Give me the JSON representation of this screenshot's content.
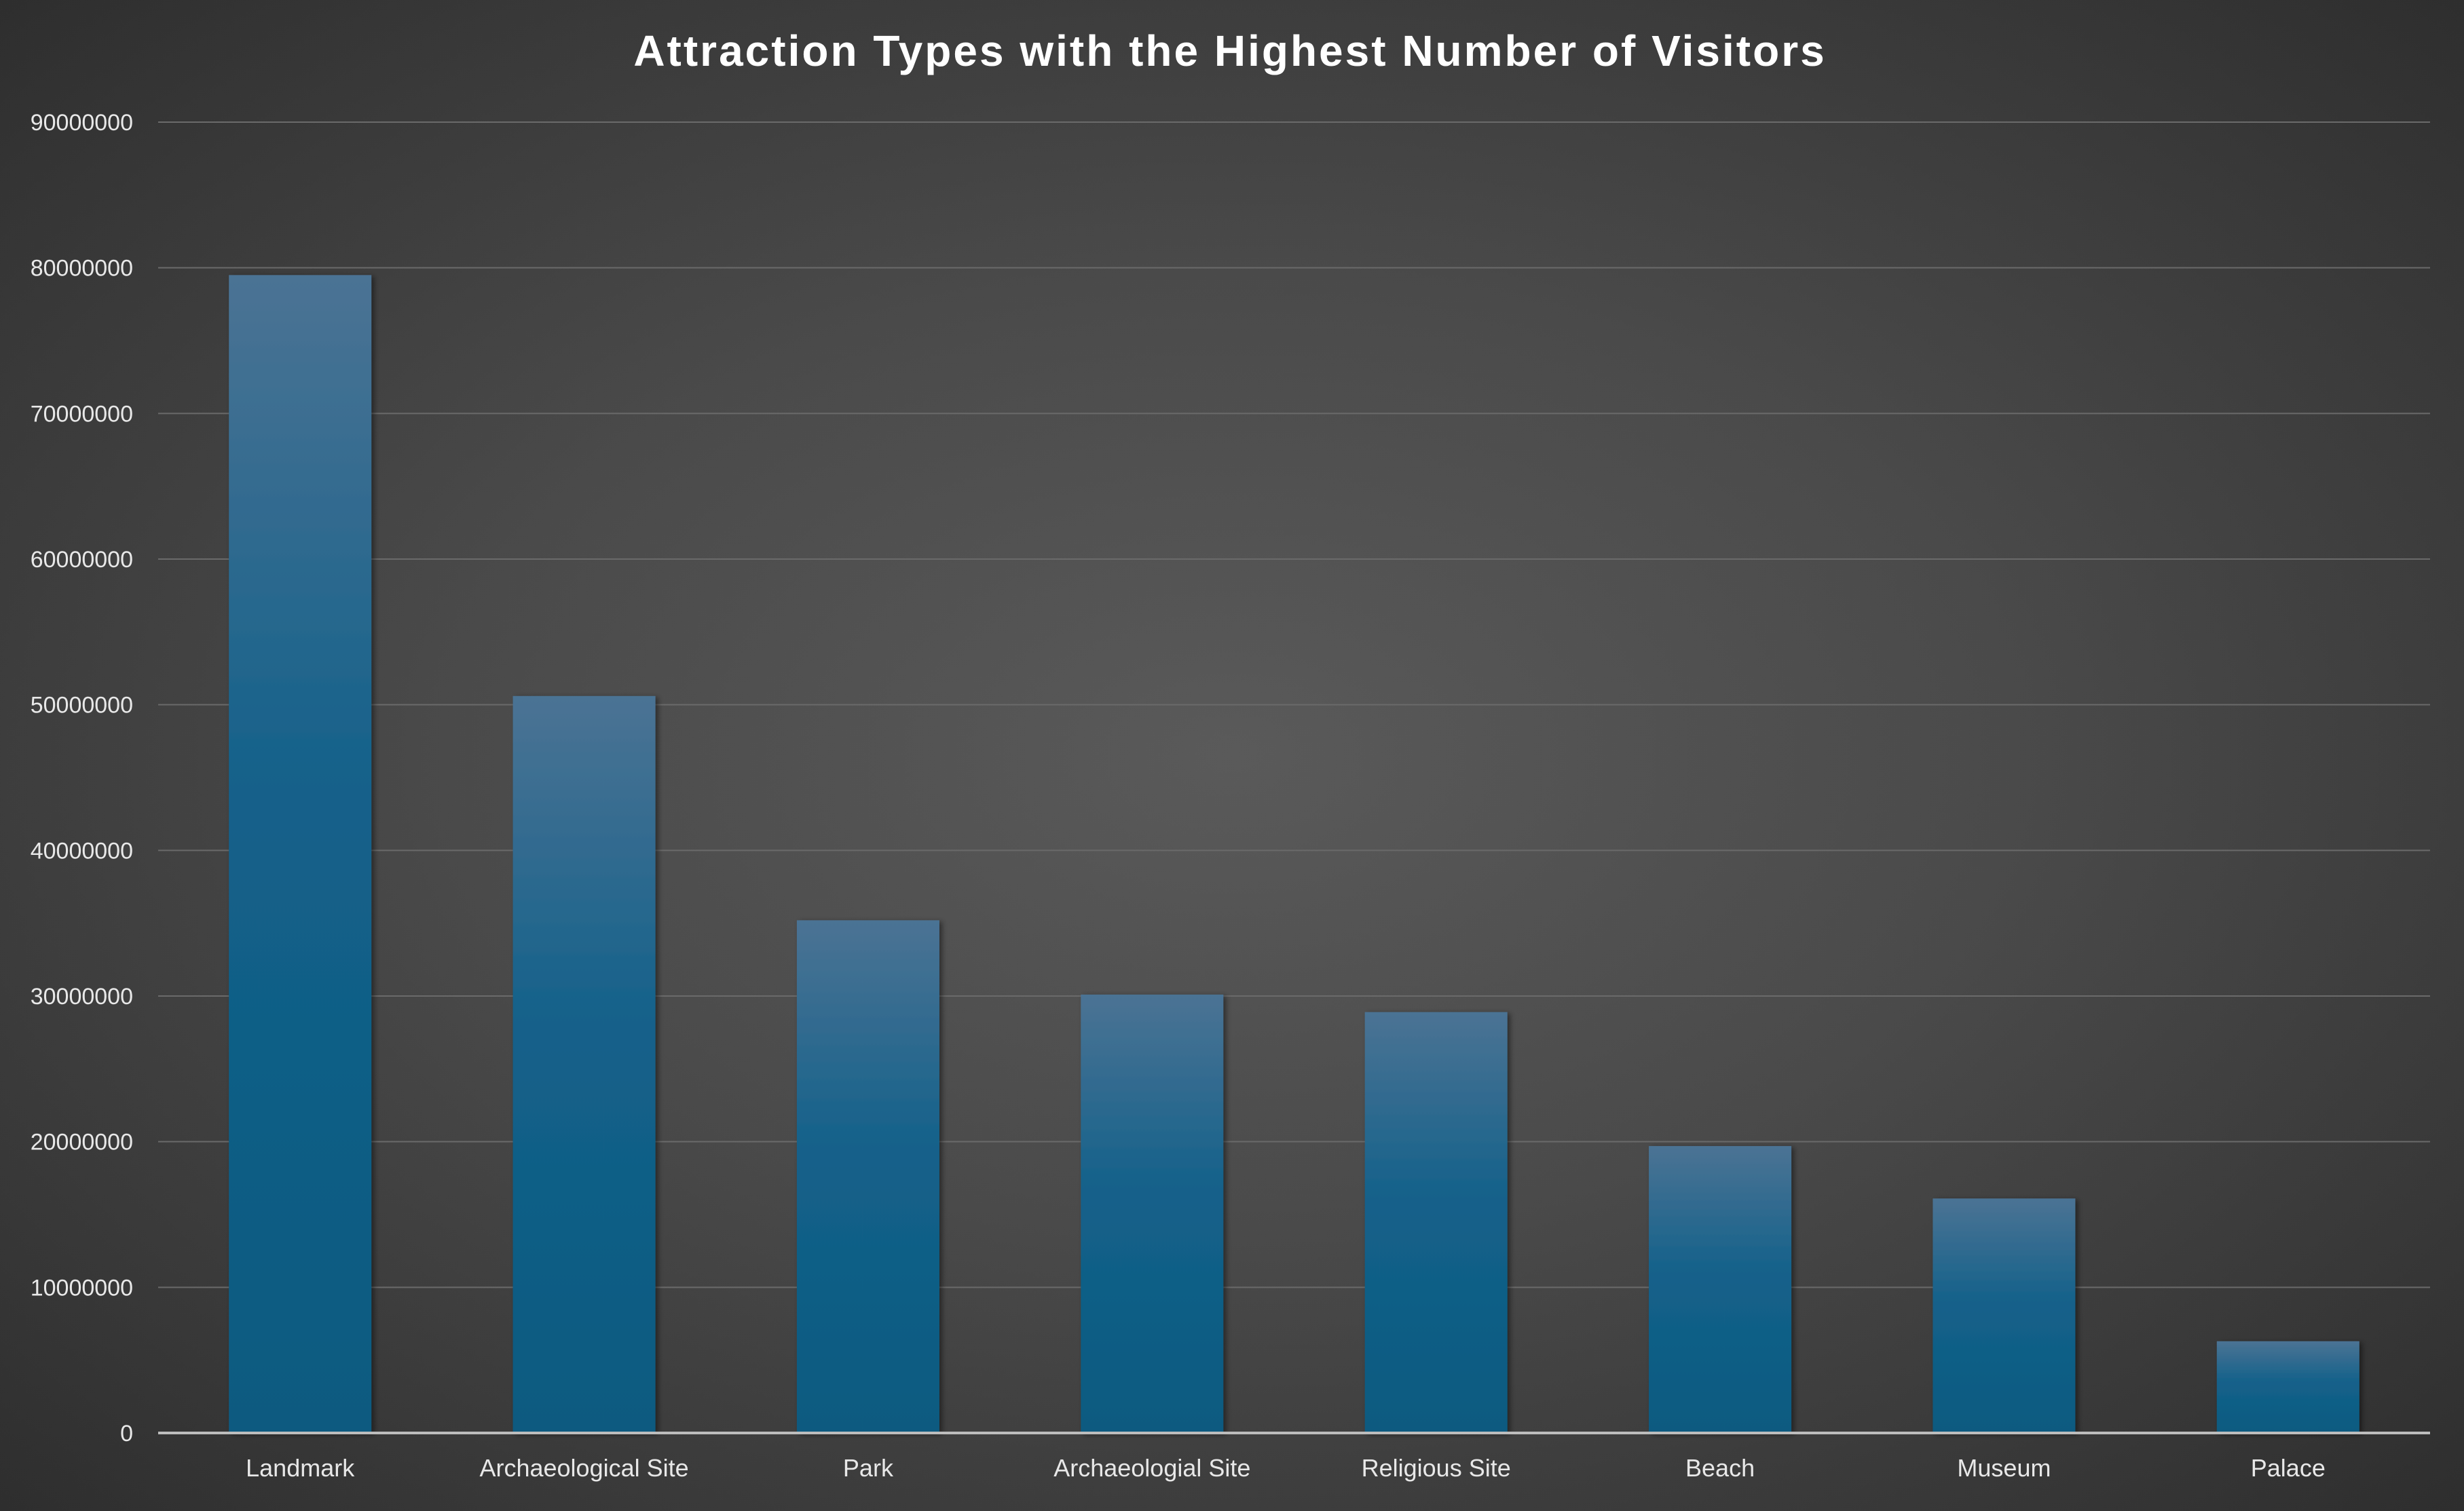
{
  "chart_data": {
    "type": "bar",
    "title": "Attraction Types with the Highest Number of Visitors",
    "xlabel": "",
    "ylabel": "",
    "categories": [
      "Landmark",
      "Archaeological Site",
      "Park",
      "Archaeologial Site",
      "Religious Site",
      "Beach",
      "Museum",
      "Palace"
    ],
    "values": [
      79500000,
      50600000,
      35200000,
      30100000,
      28900000,
      19700000,
      16100000,
      6300000
    ],
    "ylim": [
      0,
      90000000
    ],
    "yticks": [
      "0",
      "10000000",
      "20000000",
      "30000000",
      "40000000",
      "50000000",
      "60000000",
      "70000000",
      "80000000",
      "90000000"
    ],
    "grid": true,
    "legend": "none",
    "colors": {
      "bar_top": "#4b7394",
      "bar_mid": "#13618a",
      "bar_bottom": "#0d5a80",
      "grid": "#6a6a6a",
      "axis": "#bdbdbd",
      "text": "#e8e8e8",
      "title": "#ffffff"
    }
  }
}
